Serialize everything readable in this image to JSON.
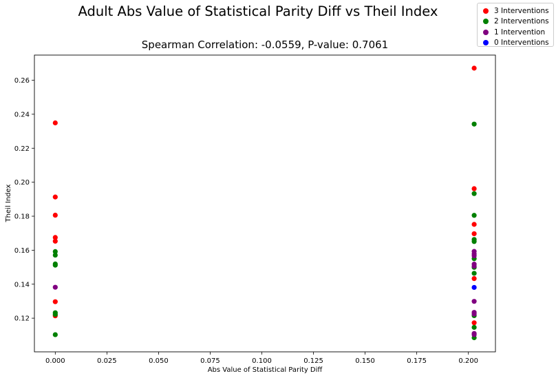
{
  "figure": {
    "suptitle": "Adult Abs Value of Statistical Parity Diff vs Theil Index"
  },
  "legend": {
    "placement": "top-right",
    "items": [
      {
        "label": "3 Interventions",
        "color": "#ff0000"
      },
      {
        "label": "2 Interventions",
        "color": "#008000"
      },
      {
        "label": "1 Intervention",
        "color": "#800080"
      },
      {
        "label": "0 Interventions",
        "color": "#0000ff"
      }
    ]
  },
  "chart_data": {
    "type": "scatter",
    "title": "Spearman Correlation: -0.0559, P-value: 0.7061",
    "xlabel": "Abs Value of Statistical Parity Diff",
    "ylabel": "Theil Index",
    "xlim": [
      -0.0101,
      0.2131
    ],
    "ylim": [
      0.1002,
      0.2748
    ],
    "xticks": [
      "0.000",
      "0.025",
      "0.050",
      "0.075",
      "0.100",
      "0.125",
      "0.150",
      "0.175",
      "0.200"
    ],
    "yticks": [
      "0.12",
      "0.14",
      "0.16",
      "0.18",
      "0.20",
      "0.22",
      "0.24",
      "0.26"
    ],
    "grid": false,
    "series": [
      {
        "name": "3 Interventions",
        "color": "#ff0000",
        "points": [
          [
            0.0,
            0.2349
          ],
          [
            0.0,
            0.1913
          ],
          [
            0.0,
            0.1806
          ],
          [
            0.0,
            0.1675
          ],
          [
            0.0,
            0.1653
          ],
          [
            0.0,
            0.1297
          ],
          [
            0.0,
            0.1214
          ],
          [
            0.2028,
            0.2671
          ],
          [
            0.2028,
            0.1962
          ],
          [
            0.2028,
            0.1752
          ],
          [
            0.2028,
            0.1697
          ],
          [
            0.2028,
            0.1433
          ],
          [
            0.2028,
            0.1173
          ]
        ]
      },
      {
        "name": "2 Interventions",
        "color": "#008000",
        "points": [
          [
            0.0,
            0.1592
          ],
          [
            0.0,
            0.1571
          ],
          [
            0.0,
            0.1519
          ],
          [
            0.0,
            0.1512
          ],
          [
            0.0,
            0.1232
          ],
          [
            0.0,
            0.1222
          ],
          [
            0.0,
            0.1103
          ],
          [
            0.2028,
            0.2342
          ],
          [
            0.2028,
            0.1933
          ],
          [
            0.2028,
            0.1805
          ],
          [
            0.2028,
            0.1663
          ],
          [
            0.2028,
            0.1651
          ],
          [
            0.2028,
            0.155
          ],
          [
            0.2028,
            0.1499
          ],
          [
            0.2028,
            0.1464
          ],
          [
            0.2028,
            0.1215
          ],
          [
            0.2028,
            0.1146
          ],
          [
            0.2028,
            0.1085
          ]
        ]
      },
      {
        "name": "1 Intervention",
        "color": "#800080",
        "points": [
          [
            0.0,
            0.1382
          ],
          [
            0.2028,
            0.1593
          ],
          [
            0.2028,
            0.1578
          ],
          [
            0.2028,
            0.1567
          ],
          [
            0.2028,
            0.1518
          ],
          [
            0.2028,
            0.1506
          ],
          [
            0.2028,
            0.1299
          ],
          [
            0.2028,
            0.1234
          ],
          [
            0.2028,
            0.1224
          ],
          [
            0.2028,
            0.111
          ],
          [
            0.2028,
            0.1103
          ]
        ]
      },
      {
        "name": "0 Interventions",
        "color": "#0000ff",
        "points": [
          [
            0.2028,
            0.1381
          ]
        ]
      }
    ]
  }
}
